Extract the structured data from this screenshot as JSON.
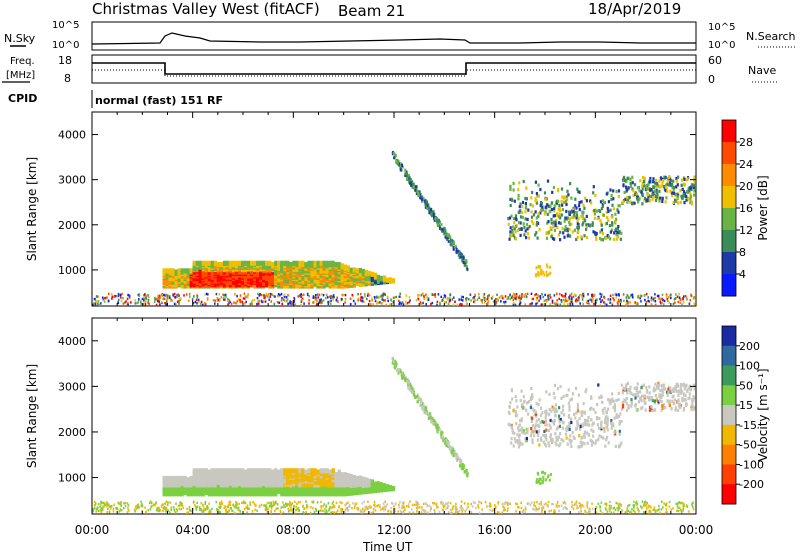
{
  "header": {
    "station": "Christmas Valley West (fitACF)",
    "beam": "Beam 21",
    "date": "18/Apr/2019"
  },
  "top_panels": {
    "nsky_label": "N.Sky",
    "nsky_ticks": [
      "10^5",
      "10^0"
    ],
    "nsearch_label": "N.Search",
    "nsearch_ticks": [
      "10^5",
      "10^0"
    ],
    "freq_label_line1": "Freq.",
    "freq_label_line2": "[MHz]",
    "freq_ticks": [
      "18",
      "8"
    ],
    "nave_label": "Nave",
    "nave_ticks": [
      "60",
      "0"
    ],
    "cpid_label": "CPID",
    "cpid_text": "normal (fast) 151 RF"
  },
  "x_axis": {
    "title": "Time UT",
    "ticks": [
      "00:00",
      "04:00",
      "08:00",
      "12:00",
      "16:00",
      "20:00",
      "00:00"
    ]
  },
  "chart_data": [
    {
      "type": "heatmap",
      "quantity": "power",
      "ylabel": "Slant Range [km]",
      "y_ticks": [
        "1000",
        "2000",
        "3000",
        "4000"
      ],
      "ylim": [
        200,
        4500
      ],
      "xlim_hours": [
        0,
        24
      ],
      "colorbar_label": "Power [dB]",
      "colorbar_ticks": [
        "4",
        "8",
        "12",
        "16",
        "20",
        "24",
        "28"
      ],
      "colors": [
        "#0a1aff",
        "#1c3aa8",
        "#3c8c5a",
        "#6ab446",
        "#f0c000",
        "#ff8c00",
        "#ff4a00",
        "#ff0000"
      ]
    },
    {
      "type": "heatmap",
      "quantity": "velocity",
      "ylabel": "Slant Range [km]",
      "y_ticks": [
        "1000",
        "2000",
        "3000",
        "4000"
      ],
      "ylim": [
        200,
        4500
      ],
      "xlim_hours": [
        0,
        24
      ],
      "colorbar_label": "Velocity [m s⁻¹]",
      "colorbar_ticks": [
        "200",
        "100",
        "50",
        "15",
        "-15",
        "-50",
        "-100",
        "-200"
      ],
      "colors": [
        "#1a2aa0",
        "#2f6a9e",
        "#3c9a5a",
        "#7ad040",
        "#c8c8c0",
        "#f0b800",
        "#ff8000",
        "#ff4000",
        "#ff0000"
      ]
    }
  ]
}
